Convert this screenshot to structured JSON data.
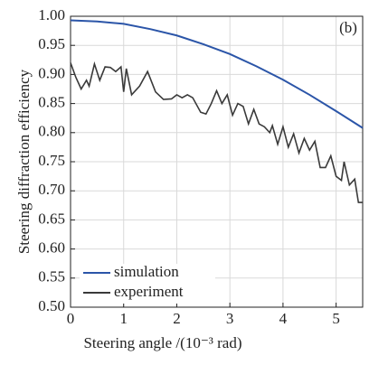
{
  "chart_data": {
    "type": "line",
    "xlabel": "Steering angle /(10⁻³ rad)",
    "ylabel": "Steering diffraction efficiency",
    "annotation": "(b)",
    "xlim": [
      0,
      5.5
    ],
    "ylim": [
      0.5,
      1.0
    ],
    "xticks": [
      0,
      1,
      2,
      3,
      4,
      5
    ],
    "yticks": [
      {
        "value": 0.5,
        "label": "0.50"
      },
      0.55,
      {
        "value": 0.6,
        "label": "0.60"
      },
      0.65,
      {
        "value": 0.7,
        "label": "0.70"
      },
      0.75,
      {
        "value": 0.8,
        "label": "0.80"
      },
      0.85,
      {
        "value": 0.9,
        "label": "0.90"
      },
      0.95,
      {
        "value": 1.0,
        "label": "1.00"
      }
    ],
    "grid": true,
    "legend": "lower-left",
    "series": [
      {
        "name": "simulation",
        "color": "#2b55a8",
        "x": [
          0,
          0.5,
          1,
          1.5,
          2,
          2.5,
          3,
          3.5,
          4,
          4.5,
          5,
          5.5
        ],
        "values": [
          0.993,
          0.991,
          0.987,
          0.978,
          0.967,
          0.952,
          0.935,
          0.914,
          0.891,
          0.865,
          0.837,
          0.808
        ]
      },
      {
        "name": "experiment",
        "color": "#3a3a3a",
        "x": [
          0,
          0.1,
          0.2,
          0.3,
          0.35,
          0.45,
          0.55,
          0.65,
          0.75,
          0.85,
          0.95,
          1.0,
          1.05,
          1.15,
          1.3,
          1.45,
          1.6,
          1.75,
          1.9,
          2.0,
          2.1,
          2.2,
          2.3,
          2.45,
          2.55,
          2.65,
          2.75,
          2.85,
          2.95,
          3.05,
          3.15,
          3.25,
          3.35,
          3.45,
          3.55,
          3.65,
          3.75,
          3.8,
          3.9,
          4.0,
          4.1,
          4.2,
          4.3,
          4.4,
          4.5,
          4.6,
          4.7,
          4.8,
          4.9,
          5.0,
          5.1,
          5.15,
          5.25,
          5.35,
          5.42,
          5.5
        ],
        "values": [
          0.92,
          0.895,
          0.875,
          0.89,
          0.88,
          0.918,
          0.89,
          0.913,
          0.912,
          0.905,
          0.913,
          0.87,
          0.91,
          0.865,
          0.88,
          0.905,
          0.87,
          0.857,
          0.858,
          0.865,
          0.86,
          0.865,
          0.86,
          0.835,
          0.832,
          0.85,
          0.872,
          0.85,
          0.865,
          0.83,
          0.85,
          0.845,
          0.815,
          0.84,
          0.815,
          0.81,
          0.8,
          0.812,
          0.78,
          0.81,
          0.775,
          0.798,
          0.765,
          0.79,
          0.77,
          0.785,
          0.74,
          0.74,
          0.76,
          0.725,
          0.718,
          0.75,
          0.71,
          0.72,
          0.68,
          0.68
        ]
      }
    ]
  }
}
